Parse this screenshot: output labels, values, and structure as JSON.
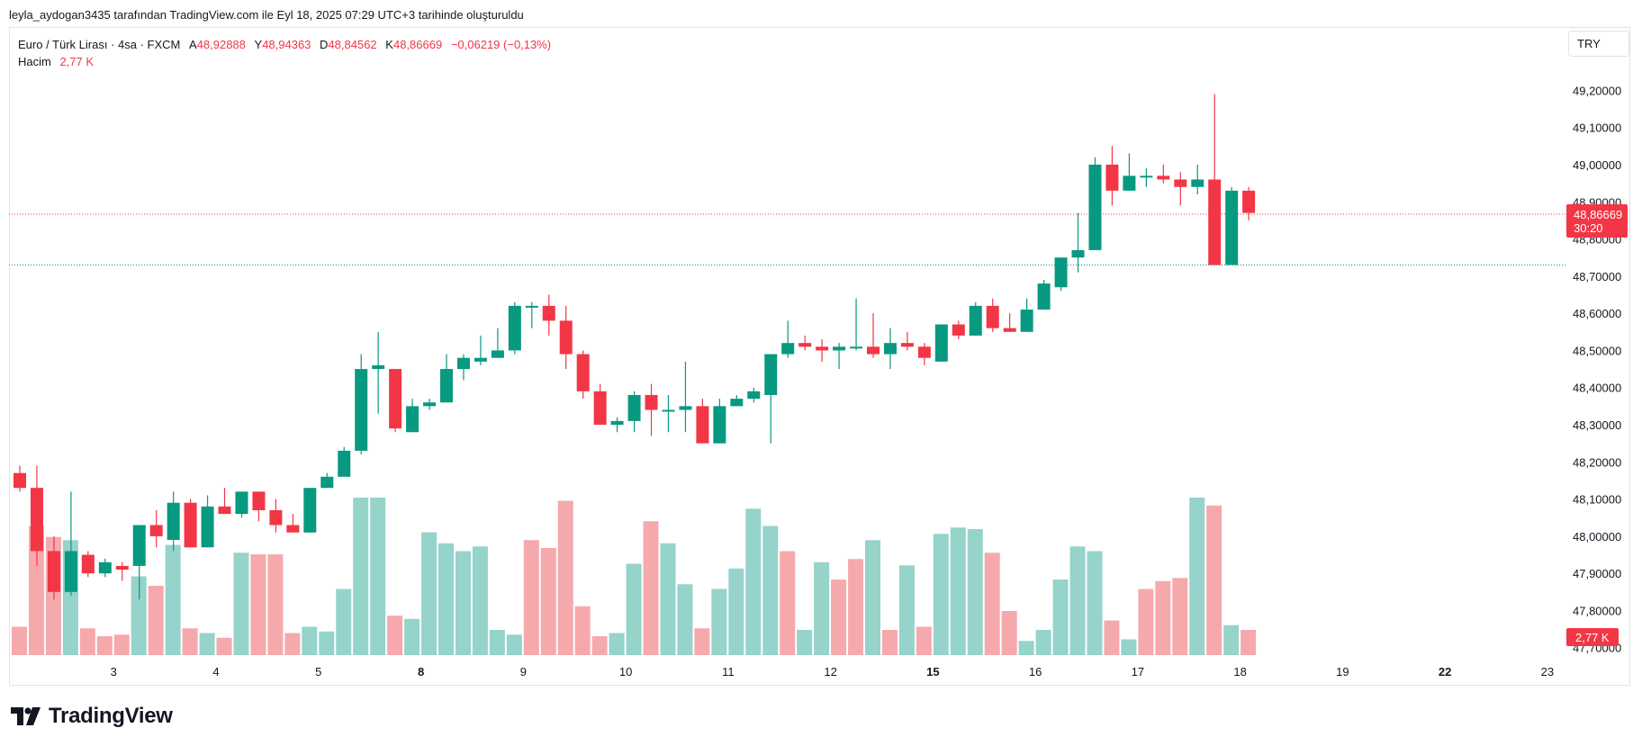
{
  "header": {
    "credit": "leyla_aydogan3435 tarafından TradingView.com ile Eyl 18, 2025 07:29 UTC+3 tarihinde oluşturuldu"
  },
  "legend": {
    "symbol": "Euro / Türk Lirası · 4sa · FXCM",
    "open_key": "A",
    "open": "48,92888",
    "high_key": "Y",
    "high": "48,94363",
    "low_key": "D",
    "low": "48,84562",
    "close_key": "K",
    "close": "48,86669",
    "change": "−0,06219 (−0,13%)",
    "volume_label": "Hacim",
    "volume_value": "2,77 K"
  },
  "currency_button": "TRY",
  "price_label": {
    "price": "48,86669",
    "countdown": "30:20"
  },
  "volume_label_axis": "2,77 K",
  "logo_text": "TradingView",
  "colors": {
    "up": "#089981",
    "down": "#f23645",
    "up_volume": "#95d3cb",
    "down_volume": "#f6a9ad"
  },
  "chart_data": {
    "type": "candlestick",
    "ylim": [
      47.68,
      49.23
    ],
    "y_ticks": [
      {
        "value": 49.2,
        "label": "49,20000"
      },
      {
        "value": 49.1,
        "label": "49,10000"
      },
      {
        "value": 49.0,
        "label": "49,00000"
      },
      {
        "value": 48.9,
        "label": "48,90000"
      },
      {
        "value": 48.8,
        "label": "48,80000"
      },
      {
        "value": 48.7,
        "label": "48,70000"
      },
      {
        "value": 48.6,
        "label": "48,60000"
      },
      {
        "value": 48.5,
        "label": "48,50000"
      },
      {
        "value": 48.4,
        "label": "48,40000"
      },
      {
        "value": 48.3,
        "label": "48,30000"
      },
      {
        "value": 48.2,
        "label": "48,20000"
      },
      {
        "value": 48.1,
        "label": "48,10000"
      },
      {
        "value": 48.0,
        "label": "48,00000"
      },
      {
        "value": 47.9,
        "label": "47,90000"
      },
      {
        "value": 47.8,
        "label": "47,80000"
      },
      {
        "value": 47.7,
        "label": "47,70000"
      }
    ],
    "x_ticks": [
      {
        "index": 5.5,
        "label": "3",
        "bold": false
      },
      {
        "index": 11.5,
        "label": "4",
        "bold": false
      },
      {
        "index": 17.5,
        "label": "5",
        "bold": false
      },
      {
        "index": 23.5,
        "label": "8",
        "bold": true
      },
      {
        "index": 29.5,
        "label": "9",
        "bold": false
      },
      {
        "index": 35.5,
        "label": "10",
        "bold": false
      },
      {
        "index": 41.5,
        "label": "11",
        "bold": false
      },
      {
        "index": 47.5,
        "label": "12",
        "bold": false
      },
      {
        "index": 53.5,
        "label": "15",
        "bold": true
      },
      {
        "index": 59.5,
        "label": "16",
        "bold": false
      },
      {
        "index": 65.5,
        "label": "17",
        "bold": false
      },
      {
        "index": 71.5,
        "label": "18",
        "bold": false
      },
      {
        "index": 77.5,
        "label": "19",
        "bold": false
      },
      {
        "index": 83.5,
        "label": "22",
        "bold": true
      },
      {
        "index": 89.5,
        "label": "23",
        "bold": false
      }
    ],
    "last_price": 48.86669,
    "green_level": 48.73,
    "candles": [
      [
        48.17,
        48.19,
        48.12,
        48.13
      ],
      [
        48.13,
        48.19,
        47.92,
        47.96
      ],
      [
        47.96,
        48.0,
        47.83,
        47.85
      ],
      [
        47.85,
        48.12,
        47.84,
        47.96
      ],
      [
        47.95,
        47.96,
        47.89,
        47.9
      ],
      [
        47.9,
        47.94,
        47.89,
        47.93
      ],
      [
        47.92,
        47.93,
        47.88,
        47.91
      ],
      [
        47.92,
        48.03,
        47.83,
        48.03
      ],
      [
        48.03,
        48.07,
        47.97,
        48.0
      ],
      [
        47.99,
        48.12,
        47.96,
        48.09
      ],
      [
        48.09,
        48.1,
        47.97,
        47.97
      ],
      [
        47.97,
        48.11,
        47.97,
        48.08
      ],
      [
        48.08,
        48.13,
        48.06,
        48.06
      ],
      [
        48.06,
        48.12,
        48.05,
        48.12
      ],
      [
        48.12,
        48.12,
        48.04,
        48.07
      ],
      [
        48.07,
        48.1,
        48.01,
        48.03
      ],
      [
        48.03,
        48.06,
        48.01,
        48.01
      ],
      [
        48.01,
        48.13,
        48.01,
        48.13
      ],
      [
        48.13,
        48.17,
        48.13,
        48.16
      ],
      [
        48.16,
        48.24,
        48.16,
        48.23
      ],
      [
        48.23,
        48.49,
        48.22,
        48.45
      ],
      [
        48.45,
        48.55,
        48.33,
        48.46
      ],
      [
        48.45,
        48.45,
        48.28,
        48.29
      ],
      [
        48.28,
        48.37,
        48.28,
        48.35
      ],
      [
        48.35,
        48.37,
        48.34,
        48.36
      ],
      [
        48.36,
        48.49,
        48.36,
        48.45
      ],
      [
        48.45,
        48.49,
        48.42,
        48.48
      ],
      [
        48.47,
        48.54,
        48.46,
        48.48
      ],
      [
        48.48,
        48.56,
        48.48,
        48.5
      ],
      [
        48.5,
        48.63,
        48.49,
        48.62
      ],
      [
        48.62,
        48.63,
        48.56,
        48.62
      ],
      [
        48.62,
        48.65,
        48.54,
        48.58
      ],
      [
        48.58,
        48.62,
        48.45,
        48.49
      ],
      [
        48.49,
        48.5,
        48.37,
        48.39
      ],
      [
        48.39,
        48.41,
        48.3,
        48.3
      ],
      [
        48.3,
        48.32,
        48.28,
        48.31
      ],
      [
        48.31,
        48.39,
        48.28,
        48.38
      ],
      [
        48.38,
        48.41,
        48.27,
        48.34
      ],
      [
        48.34,
        48.38,
        48.28,
        48.34
      ],
      [
        48.34,
        48.47,
        48.28,
        48.35
      ],
      [
        48.35,
        48.37,
        48.25,
        48.25
      ],
      [
        48.25,
        48.37,
        48.25,
        48.35
      ],
      [
        48.35,
        48.38,
        48.35,
        48.37
      ],
      [
        48.37,
        48.4,
        48.36,
        48.39
      ],
      [
        48.38,
        48.49,
        48.25,
        48.49
      ],
      [
        48.49,
        48.58,
        48.48,
        48.52
      ],
      [
        48.52,
        48.54,
        48.5,
        48.51
      ],
      [
        48.51,
        48.53,
        48.47,
        48.5
      ],
      [
        48.5,
        48.52,
        48.45,
        48.51
      ],
      [
        48.51,
        48.64,
        48.5,
        48.51
      ],
      [
        48.51,
        48.6,
        48.48,
        48.49
      ],
      [
        48.49,
        48.56,
        48.45,
        48.52
      ],
      [
        48.52,
        48.55,
        48.5,
        48.51
      ],
      [
        48.51,
        48.52,
        48.46,
        48.48
      ],
      [
        48.47,
        48.57,
        48.47,
        48.57
      ],
      [
        48.57,
        48.58,
        48.53,
        48.54
      ],
      [
        48.54,
        48.63,
        48.54,
        48.62
      ],
      [
        48.62,
        48.64,
        48.55,
        48.56
      ],
      [
        48.56,
        48.6,
        48.55,
        48.55
      ],
      [
        48.55,
        48.64,
        48.55,
        48.61
      ],
      [
        48.61,
        48.69,
        48.61,
        48.68
      ],
      [
        48.67,
        48.74,
        48.66,
        48.75
      ],
      [
        48.75,
        48.87,
        48.71,
        48.77
      ],
      [
        48.77,
        49.02,
        48.77,
        49.0
      ],
      [
        49.0,
        49.05,
        48.89,
        48.93
      ],
      [
        48.93,
        49.03,
        48.93,
        48.97
      ],
      [
        48.97,
        48.99,
        48.94,
        48.97
      ],
      [
        48.97,
        49.0,
        48.95,
        48.96
      ],
      [
        48.96,
        48.98,
        48.89,
        48.94
      ],
      [
        48.94,
        49.0,
        48.92,
        48.96
      ],
      [
        48.96,
        49.19,
        48.73,
        48.73
      ],
      [
        48.73,
        48.94,
        48.73,
        48.93
      ],
      [
        48.93,
        48.94,
        48.85,
        48.87
      ]
    ],
    "volumes": [
      0.18,
      0.82,
      0.75,
      0.73,
      0.17,
      0.12,
      0.13,
      0.5,
      0.44,
      0.7,
      0.17,
      0.14,
      0.11,
      0.65,
      0.64,
      0.64,
      0.14,
      0.18,
      0.15,
      0.42,
      1.0,
      1.0,
      0.25,
      0.23,
      0.78,
      0.71,
      0.66,
      0.69,
      0.16,
      0.13,
      0.73,
      0.68,
      0.98,
      0.31,
      0.12,
      0.14,
      0.58,
      0.85,
      0.71,
      0.45,
      0.17,
      0.42,
      0.55,
      0.93,
      0.82,
      0.66,
      0.16,
      0.59,
      0.48,
      0.61,
      0.73,
      0.16,
      0.57,
      0.18,
      0.77,
      0.81,
      0.8,
      0.65,
      0.28,
      0.09,
      0.16,
      0.48,
      0.69,
      0.66,
      0.22,
      0.1,
      0.42,
      0.47,
      0.49,
      1.0,
      0.95,
      0.19,
      0.16
    ],
    "volume_up": [
      false,
      false,
      false,
      true,
      false,
      false,
      false,
      true,
      false,
      true,
      false,
      true,
      false,
      true,
      false,
      false,
      false,
      true,
      true,
      true,
      true,
      true,
      false,
      true,
      true,
      true,
      true,
      true,
      true,
      true,
      false,
      false,
      false,
      false,
      false,
      true,
      true,
      false,
      true,
      true,
      false,
      true,
      true,
      true,
      true,
      false,
      true,
      true,
      false,
      false,
      true,
      false,
      true,
      false,
      true,
      true,
      true,
      false,
      false,
      true,
      true,
      true,
      true,
      true,
      false,
      true,
      false,
      false,
      false,
      true,
      false,
      true,
      false
    ]
  }
}
